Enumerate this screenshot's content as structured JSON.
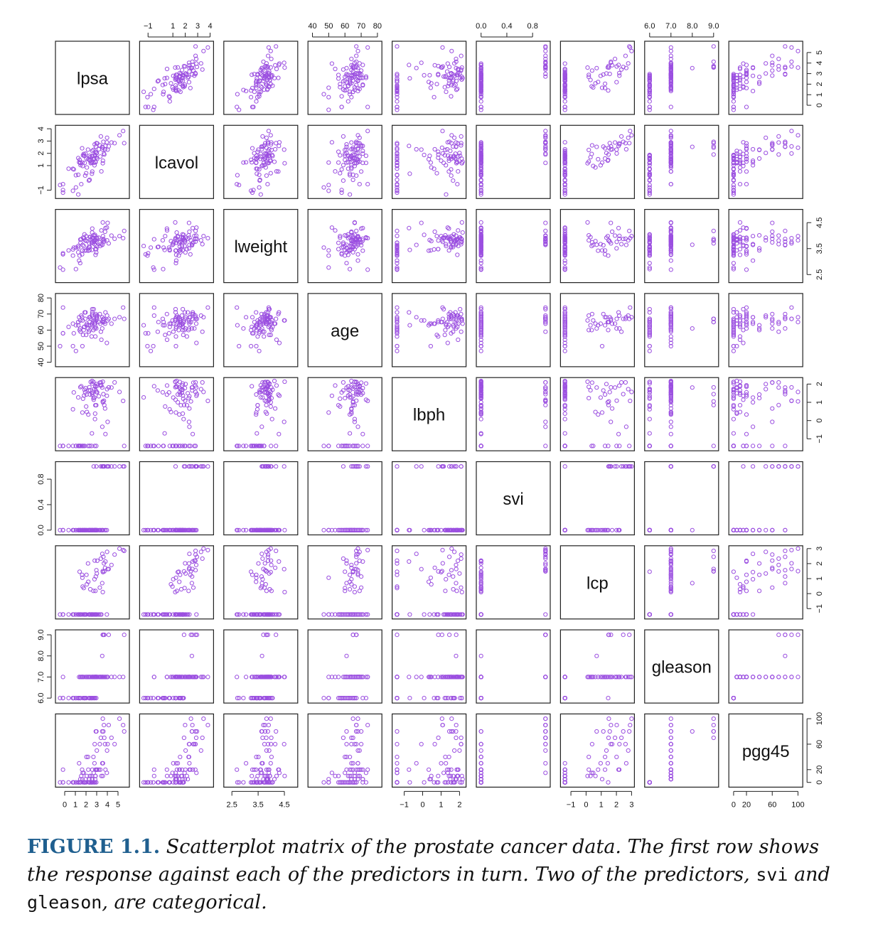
{
  "chart_data": {
    "type": "scatter-matrix",
    "point_color": "#9b4fe0",
    "variables": [
      {
        "name": "lpsa",
        "ticks": [
          0,
          1,
          2,
          3,
          4,
          5
        ],
        "range": [
          -0.6,
          5.8
        ]
      },
      {
        "name": "lcavol",
        "ticks": [
          -1,
          1,
          2,
          3,
          4
        ],
        "tick_labels": [
          "−1",
          "1",
          "2",
          "3",
          "4"
        ],
        "range": [
          -1.45,
          4.05
        ]
      },
      {
        "name": "lweight",
        "ticks": [
          2.5,
          3.5,
          4.5
        ],
        "tick_labels": [
          "2.5",
          "3.5",
          "4.5"
        ],
        "range": [
          2.3,
          4.9
        ]
      },
      {
        "name": "age",
        "ticks": [
          40,
          50,
          60,
          70,
          80
        ],
        "range": [
          39,
          81
        ]
      },
      {
        "name": "lbph",
        "ticks": [
          -1,
          0,
          1,
          2
        ],
        "tick_labels": [
          "−1",
          "0",
          "1",
          "2"
        ],
        "range": [
          -1.5,
          2.2
        ]
      },
      {
        "name": "svi",
        "ticks": [
          0.0,
          0.4,
          0.8
        ],
        "tick_labels": [
          "0.0",
          "0.4",
          "0.8"
        ],
        "range": [
          -0.03,
          1.03
        ]
      },
      {
        "name": "lcp",
        "ticks": [
          -1,
          0,
          1,
          2,
          3
        ],
        "tick_labels": [
          "−1",
          "0",
          "1",
          "2",
          "3"
        ],
        "range": [
          -1.5,
          3.0
        ]
      },
      {
        "name": "gleason",
        "ticks": [
          6,
          7,
          8,
          9
        ],
        "tick_labels": [
          "6.0",
          "7.0",
          "8.0",
          "9.0"
        ],
        "range": [
          5.9,
          9.1
        ]
      },
      {
        "name": "pgg45",
        "ticks": [
          0,
          20,
          60,
          100
        ],
        "range": [
          -3,
          103
        ]
      }
    ],
    "observations": [
      [
        -0.43,
        -0.58,
        2.77,
        50,
        -1.39,
        0,
        -1.39,
        6,
        0
      ],
      [
        -0.16,
        -0.99,
        3.32,
        58,
        -1.39,
        0,
        -1.39,
        6,
        0
      ],
      [
        -0.16,
        -0.51,
        2.69,
        74,
        -1.39,
        0,
        -1.39,
        7,
        20
      ],
      [
        -0.16,
        -1.2,
        3.28,
        58,
        -1.39,
        0,
        -1.39,
        6,
        0
      ],
      [
        0.37,
        0.75,
        3.43,
        62,
        -1.39,
        0,
        -1.39,
        6,
        0
      ],
      [
        0.77,
        -1.05,
        3.23,
        50,
        -1.39,
        0,
        -1.39,
        6,
        0
      ],
      [
        0.77,
        0.74,
        3.47,
        64,
        0.62,
        0,
        -1.39,
        6,
        0
      ],
      [
        0.85,
        0.69,
        3.54,
        58,
        1.54,
        0,
        -1.39,
        6,
        0
      ],
      [
        1.05,
        -0.78,
        3.54,
        47,
        -1.39,
        0,
        -1.39,
        6,
        0
      ],
      [
        1.05,
        0.22,
        2.71,
        63,
        -1.39,
        0,
        -1.39,
        6,
        0
      ],
      [
        1.27,
        0.25,
        3.54,
        65,
        -1.39,
        0,
        -1.39,
        6,
        0
      ],
      [
        1.27,
        -1.35,
        3.6,
        63,
        1.27,
        0,
        -1.39,
        6,
        0
      ],
      [
        1.27,
        1.61,
        3.36,
        65,
        -1.39,
        0,
        -1.39,
        6,
        0
      ],
      [
        1.35,
        1.27,
        3.04,
        68,
        -1.39,
        0,
        -1.39,
        7,
        30
      ],
      [
        1.4,
        1.47,
        3.23,
        60,
        -1.39,
        0,
        1.46,
        6,
        0
      ],
      [
        1.45,
        1.25,
        2.94,
        61,
        -1.39,
        0,
        -1.39,
        6,
        0
      ],
      [
        1.47,
        1.2,
        3.85,
        66,
        1.83,
        0,
        -1.39,
        7,
        5
      ],
      [
        1.49,
        1.04,
        3.73,
        59,
        -1.39,
        0,
        -1.39,
        6,
        0
      ],
      [
        1.55,
        -0.51,
        3.86,
        69,
        1.88,
        0,
        -1.39,
        7,
        10
      ],
      [
        1.63,
        2.41,
        3.28,
        68,
        -1.39,
        0,
        1.25,
        7,
        20
      ],
      [
        1.66,
        1.25,
        3.43,
        50,
        0.44,
        0,
        1.06,
        7,
        5
      ],
      [
        1.69,
        0.97,
        3.64,
        66,
        -1.39,
        0,
        0.47,
        7,
        15
      ],
      [
        1.72,
        1.84,
        3.92,
        57,
        1.2,
        0,
        -1.39,
        6,
        0
      ],
      [
        1.79,
        1.95,
        3.6,
        60,
        -1.39,
        0,
        0.37,
        7,
        15
      ],
      [
        1.82,
        1.81,
        3.9,
        62,
        1.37,
        0,
        -1.39,
        6,
        0
      ],
      [
        1.85,
        1.78,
        4.05,
        62,
        1.69,
        0,
        -1.39,
        6,
        0
      ],
      [
        1.88,
        1.22,
        3.42,
        71,
        -1.39,
        0,
        -1.39,
        6,
        0
      ],
      [
        1.92,
        0.18,
        3.82,
        67,
        1.55,
        0,
        -1.39,
        6,
        0
      ],
      [
        1.95,
        1.97,
        3.81,
        71,
        1.78,
        0,
        -1.39,
        7,
        5
      ],
      [
        2.01,
        0.38,
        3.98,
        57,
        0.77,
        0,
        -1.39,
        6,
        0
      ],
      [
        2.04,
        1.58,
        3.43,
        63,
        1.43,
        0,
        1.25,
        7,
        40
      ],
      [
        2.08,
        0.85,
        3.79,
        64,
        0.47,
        0,
        0.62,
        7,
        10
      ],
      [
        2.19,
        2.3,
        3.51,
        61,
        -1.39,
        0,
        2.01,
        7,
        40
      ],
      [
        2.21,
        1.52,
        3.42,
        63,
        0.33,
        0,
        0.79,
        7,
        20
      ],
      [
        2.27,
        -0.22,
        3.56,
        59,
        1.65,
        0,
        -1.39,
        6,
        0
      ],
      [
        2.31,
        1.5,
        3.7,
        68,
        1.83,
        0,
        -1.39,
        7,
        5
      ],
      [
        2.33,
        1.8,
        3.44,
        60,
        -1.39,
        0,
        -1.39,
        6,
        0
      ],
      [
        2.33,
        -0.16,
        3.57,
        65,
        -1.39,
        0,
        -1.39,
        6,
        0
      ],
      [
        2.37,
        1.4,
        3.95,
        68,
        1.43,
        0,
        -1.39,
        7,
        10
      ],
      [
        2.4,
        1.68,
        3.94,
        63,
        1.66,
        0,
        0.29,
        7,
        10
      ],
      [
        2.44,
        1.2,
        3.86,
        67,
        2.12,
        0,
        -1.39,
        6,
        0
      ],
      [
        2.53,
        1.25,
        3.72,
        56,
        -1.39,
        0,
        -1.39,
        6,
        0
      ],
      [
        2.55,
        0.34,
        3.45,
        63,
        -0.7,
        0,
        -1.39,
        6,
        0
      ],
      [
        2.56,
        1.73,
        3.75,
        69,
        1.52,
        0,
        -1.39,
        7,
        10
      ],
      [
        2.57,
        1.31,
        4.12,
        64,
        2.17,
        0,
        -1.39,
        7,
        5
      ],
      [
        2.59,
        1.8,
        3.93,
        73,
        2.03,
        0,
        -1.39,
        6,
        0
      ],
      [
        2.59,
        2.2,
        3.88,
        71,
        1.5,
        0,
        -1.39,
        7,
        5
      ],
      [
        2.59,
        0.52,
        4.27,
        70,
        1.42,
        0,
        -1.39,
        7,
        20
      ],
      [
        2.69,
        2.27,
        4.01,
        60,
        1.23,
        0,
        0.18,
        7,
        40
      ],
      [
        2.7,
        1.56,
        3.77,
        66,
        2.12,
        0,
        -1.39,
        6,
        0
      ],
      [
        2.72,
        1.22,
        3.91,
        73,
        1.14,
        1,
        -1.39,
        7,
        15
      ],
      [
        2.78,
        1.59,
        3.75,
        65,
        1.74,
        0,
        -1.39,
        6,
        0
      ],
      [
        2.79,
        1.03,
        3.67,
        64,
        1.26,
        0,
        0.96,
        7,
        30
      ],
      [
        2.81,
        2.73,
        3.99,
        61,
        -1.39,
        0,
        2.2,
        7,
        60
      ],
      [
        2.84,
        1.87,
        4.03,
        66,
        0.08,
        0,
        -1.39,
        6,
        0
      ],
      [
        2.85,
        1.8,
        3.83,
        64,
        0.38,
        0,
        -1.39,
        7,
        5
      ],
      [
        2.87,
        2.13,
        3.48,
        56,
        0.84,
        0,
        -1.39,
        7,
        10
      ],
      [
        2.88,
        1.33,
        3.82,
        69,
        1.85,
        0,
        0.18,
        7,
        20
      ],
      [
        2.89,
        1.27,
        3.26,
        62,
        1.88,
        0,
        -1.39,
        7,
        10
      ],
      [
        2.92,
        2.55,
        3.63,
        70,
        1.65,
        0,
        1.14,
        7,
        80
      ],
      [
        2.96,
        1.65,
        3.48,
        66,
        0.84,
        0,
        -1.39,
        6,
        0
      ],
      [
        2.96,
        2.01,
        3.35,
        61,
        -1.39,
        0,
        -1.39,
        7,
        20
      ],
      [
        2.97,
        2.83,
        3.77,
        68,
        1.56,
        1,
        1.56,
        7,
        80
      ],
      [
        3.01,
        2.03,
        3.92,
        68,
        2.0,
        0,
        1.34,
        7,
        50
      ],
      [
        3.04,
        1.55,
        3.58,
        67,
        1.55,
        0,
        -1.39,
        7,
        20
      ],
      [
        3.05,
        2.81,
        3.88,
        69,
        1.91,
        0,
        2.19,
        7,
        20
      ],
      [
        3.2,
        2.33,
        3.92,
        65,
        1.33,
        0,
        -1.39,
        7,
        20
      ],
      [
        3.29,
        2.65,
        3.74,
        70,
        2.08,
        0,
        0.4,
        7,
        60
      ],
      [
        3.34,
        1.74,
        3.6,
        64,
        1.93,
        0,
        -1.39,
        7,
        20
      ],
      [
        3.39,
        3.38,
        3.67,
        59,
        2.09,
        1,
        2.33,
        7,
        70
      ],
      [
        3.44,
        0.53,
        4.2,
        54,
        1.92,
        0,
        -1.39,
        7,
        10
      ],
      [
        3.52,
        2.53,
        3.65,
        61,
        1.81,
        0,
        0.7,
        8,
        80
      ],
      [
        3.53,
        2.33,
        3.64,
        68,
        -0.34,
        1,
        2.65,
        7,
        30
      ],
      [
        3.57,
        2.46,
        3.82,
        65,
        1.05,
        1,
        1.5,
        9,
        100
      ],
      [
        3.57,
        1.19,
        4.51,
        66,
        2.13,
        0,
        0.1,
        7,
        10
      ],
      [
        3.59,
        1.4,
        3.98,
        65,
        1.0,
        0,
        1.43,
        7,
        30
      ],
      [
        3.63,
        2.94,
        3.87,
        67,
        1.45,
        1,
        2.45,
        9,
        80
      ],
      [
        3.68,
        1.99,
        3.76,
        67,
        1.09,
        1,
        2.02,
        7,
        90
      ],
      [
        3.71,
        1.9,
        3.81,
        65,
        0.85,
        1,
        1.48,
        9,
        70
      ],
      [
        3.79,
        2.33,
        4.15,
        64,
        0.66,
        0,
        1.72,
        7,
        60
      ],
      [
        3.82,
        2.6,
        4.29,
        71,
        -0.74,
        0,
        2.14,
        7,
        20
      ],
      [
        3.95,
        2.9,
        4.31,
        52,
        1.36,
        0,
        -1.39,
        7,
        15
      ],
      [
        3.97,
        3.27,
        3.82,
        69,
        1.72,
        1,
        2.78,
        7,
        50
      ],
      [
        4.03,
        2.3,
        4.49,
        66,
        -0.07,
        1,
        1.63,
        7,
        60
      ],
      [
        4.13,
        2.57,
        3.7,
        67,
        1.82,
        1,
        1.64,
        9,
        90
      ],
      [
        4.39,
        2.88,
        4.0,
        64,
        1.81,
        1,
        1.91,
        7,
        70
      ],
      [
        4.68,
        2.83,
        3.88,
        67,
        2.09,
        1,
        2.6,
        7,
        60
      ],
      [
        5.14,
        3.47,
        3.98,
        68,
        1.57,
        1,
        3.0,
        7,
        100
      ],
      [
        5.48,
        3.82,
        3.9,
        74,
        1.08,
        1,
        2.9,
        7,
        90
      ],
      [
        5.58,
        2.83,
        4.18,
        67,
        -1.39,
        1,
        2.85,
        9,
        80
      ]
    ]
  },
  "caption": {
    "label": "FIGURE 1.1.",
    "text_1": " Scatterplot matrix of the prostate cancer data. The first row shows the response against each of the predictors in turn. Two of the predictors, ",
    "code_1": "svi",
    "text_2": " and ",
    "code_2": "gleason",
    "text_3": ", are categorical."
  },
  "colors": {
    "point": "#9b4fe0",
    "caption_label": "#1f5f8f"
  }
}
